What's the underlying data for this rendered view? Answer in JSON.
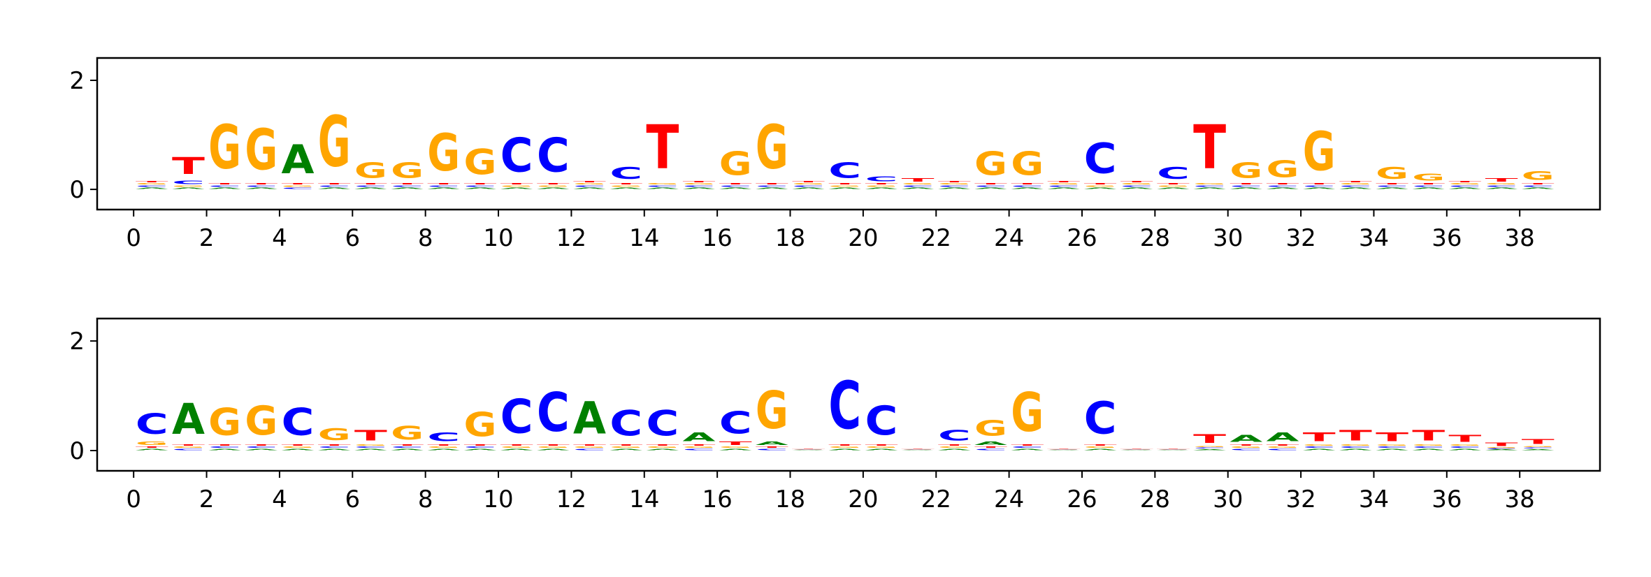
{
  "chart_data": [
    {
      "type": "logo",
      "x": [
        0.5,
        1.5,
        2.5,
        3.5,
        4.5,
        5.5,
        6.5,
        7.5,
        8.5,
        9.5,
        10.5,
        11.5,
        12.5,
        13.5,
        14.5,
        15.5,
        16.5,
        17.5,
        18.5,
        19.5,
        20.5,
        21.5,
        22.5,
        23.5,
        24.5,
        25.5,
        26.5,
        27.5,
        28.5,
        29.5,
        30.5,
        31.5,
        32.5,
        33.5,
        34.5,
        35.5,
        36.5,
        37.5,
        38.5
      ],
      "series": [
        {
          "name": "A",
          "color": "#008000",
          "values": [
            0.04,
            0.04,
            0.04,
            0.04,
            0.85,
            0.04,
            0.04,
            0.04,
            0.04,
            0.04,
            0.04,
            0.04,
            0.04,
            0.04,
            0.04,
            0.04,
            0.04,
            0.04,
            0.04,
            0.04,
            0.04,
            0.04,
            0.04,
            0.04,
            0.04,
            0.04,
            0.04,
            0.04,
            0.04,
            0.04,
            0.04,
            0.04,
            0.04,
            0.04,
            0.04,
            0.04,
            0.04,
            0.04,
            0.04
          ]
        },
        {
          "name": "C",
          "color": "#0000ff",
          "values": [
            0.04,
            0.1,
            0.04,
            0.04,
            0.04,
            0.04,
            0.04,
            0.04,
            0.04,
            0.04,
            1.0,
            1.0,
            0.04,
            0.35,
            0.04,
            0.04,
            0.04,
            0.04,
            0.04,
            0.45,
            0.15,
            0.04,
            0.04,
            0.04,
            0.04,
            0.04,
            0.9,
            0.04,
            0.35,
            0.04,
            0.04,
            0.04,
            0.04,
            0.04,
            0.04,
            0.04,
            0.04,
            0.04,
            0.04
          ]
        },
        {
          "name": "G",
          "color": "#ffa500",
          "values": [
            0.04,
            0.04,
            1.3,
            1.2,
            0.04,
            1.5,
            0.45,
            0.45,
            1.1,
            0.75,
            0.04,
            0.04,
            0.04,
            0.04,
            0.04,
            0.04,
            0.7,
            1.3,
            0.04,
            0.04,
            0.04,
            0.04,
            0.04,
            0.7,
            0.7,
            0.04,
            0.04,
            0.04,
            0.04,
            0.04,
            0.45,
            0.5,
            1.15,
            0.04,
            0.35,
            0.2,
            0.04,
            0.04,
            0.25
          ]
        },
        {
          "name": "T",
          "color": "#ff0000",
          "values": [
            0.04,
            0.5,
            0.04,
            0.04,
            0.04,
            0.04,
            0.04,
            0.04,
            0.04,
            0.04,
            0.04,
            0.04,
            0.04,
            0.04,
            1.3,
            0.04,
            0.04,
            0.04,
            0.04,
            0.04,
            0.04,
            0.1,
            0.04,
            0.04,
            0.04,
            0.04,
            0.04,
            0.04,
            0.04,
            1.3,
            0.04,
            0.04,
            0.04,
            0.04,
            0.04,
            0.04,
            0.04,
            0.1,
            0.04
          ]
        }
      ],
      "xlim": [
        -1,
        40.2
      ],
      "xticks": [
        0,
        2,
        4,
        6,
        8,
        10,
        12,
        14,
        16,
        18,
        20,
        22,
        24,
        26,
        28,
        30,
        32,
        34,
        36,
        38
      ],
      "ylim": [
        -0.37,
        2.41
      ],
      "yticks": [
        0,
        2
      ]
    },
    {
      "type": "logo",
      "x": [
        0.5,
        1.5,
        2.5,
        3.5,
        4.5,
        5.5,
        6.5,
        7.5,
        8.5,
        9.5,
        10.5,
        11.5,
        12.5,
        13.5,
        14.5,
        15.5,
        16.5,
        17.5,
        18.5,
        19.5,
        20.5,
        21.5,
        22.5,
        23.5,
        24.5,
        25.5,
        26.5,
        27.5,
        28.5,
        29.5,
        30.5,
        31.5,
        32.5,
        33.5,
        34.5,
        35.5,
        36.5,
        37.5,
        38.5
      ],
      "series": [
        {
          "name": "A",
          "color": "#008000",
          "values": [
            0.04,
            0.9,
            0.04,
            0.04,
            0.04,
            0.04,
            0.04,
            0.04,
            0.04,
            0.04,
            0.04,
            0.04,
            0.95,
            0.04,
            0.04,
            0.25,
            0.04,
            0.1,
            0.01,
            0.04,
            0.04,
            0.01,
            0.04,
            0.1,
            0.04,
            0.01,
            0.04,
            0.01,
            0.01,
            0.03,
            0.2,
            0.25,
            0.04,
            0.04,
            0.04,
            0.04,
            0.04,
            0.02,
            0.03
          ]
        },
        {
          "name": "C",
          "color": "#0000ff",
          "values": [
            0.6,
            0.04,
            0.04,
            0.04,
            0.8,
            0.04,
            0.04,
            0.04,
            0.25,
            0.04,
            1.0,
            1.15,
            0.04,
            0.75,
            0.75,
            0.04,
            0.65,
            0.04,
            0.01,
            1.4,
            0.85,
            0.01,
            0.3,
            0.04,
            0.04,
            0.01,
            0.95,
            0.01,
            0.01,
            0.03,
            0.04,
            0.04,
            0.04,
            0.04,
            0.04,
            0.04,
            0.04,
            0.02,
            0.03
          ]
        },
        {
          "name": "G",
          "color": "#ffa500",
          "values": [
            0.1,
            0.04,
            0.8,
            0.85,
            0.04,
            0.35,
            0.04,
            0.4,
            0.04,
            0.7,
            0.04,
            0.04,
            0.04,
            0.04,
            0.04,
            0.04,
            0.04,
            1.1,
            0.01,
            0.04,
            0.04,
            0.01,
            0.04,
            0.45,
            1.15,
            0.01,
            0.04,
            0.01,
            0.01,
            0.03,
            0.04,
            0.04,
            0.04,
            0.04,
            0.04,
            0.04,
            0.04,
            0.02,
            0.03
          ]
        },
        {
          "name": "T",
          "color": "#ff0000",
          "values": [
            0.04,
            0.04,
            0.04,
            0.04,
            0.04,
            0.04,
            0.3,
            0.04,
            0.04,
            0.04,
            0.04,
            0.04,
            0.04,
            0.04,
            0.04,
            0.04,
            0.1,
            0.04,
            0.01,
            0.04,
            0.04,
            0.01,
            0.04,
            0.04,
            0.04,
            0.01,
            0.04,
            0.01,
            0.01,
            0.25,
            0.04,
            0.04,
            0.25,
            0.3,
            0.25,
            0.3,
            0.2,
            0.1,
            0.15
          ]
        }
      ],
      "xlim": [
        -1,
        40.2
      ],
      "xticks": [
        0,
        2,
        4,
        6,
        8,
        10,
        12,
        14,
        16,
        18,
        20,
        22,
        24,
        26,
        28,
        30,
        32,
        34,
        36,
        38
      ],
      "ylim": [
        -0.37,
        2.41
      ],
      "yticks": [
        0,
        2
      ]
    }
  ]
}
